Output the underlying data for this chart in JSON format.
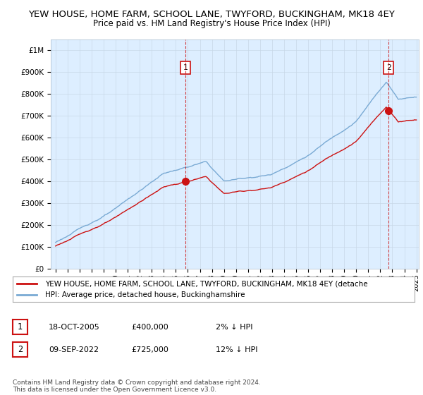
{
  "title": "YEW HOUSE, HOME FARM, SCHOOL LANE, TWYFORD, BUCKINGHAM, MK18 4EY",
  "subtitle": "Price paid vs. HM Land Registry's House Price Index (HPI)",
  "ylim": [
    0,
    1050000
  ],
  "yticks": [
    0,
    100000,
    200000,
    300000,
    400000,
    500000,
    600000,
    700000,
    800000,
    900000,
    1000000
  ],
  "ytick_labels": [
    "£0",
    "£100K",
    "£200K",
    "£300K",
    "£400K",
    "£500K",
    "£600K",
    "£700K",
    "£800K",
    "£900K",
    "£1M"
  ],
  "hpi_color": "#7aaad4",
  "price_color": "#cc1111",
  "chart_bg": "#ddeeff",
  "sale1_year": 2005.79,
  "sale1_price": 400000,
  "sale2_year": 2022.69,
  "sale2_price": 725000,
  "legend_line1": "YEW HOUSE, HOME FARM, SCHOOL LANE, TWYFORD, BUCKINGHAM, MK18 4EY (detache",
  "legend_line2": "HPI: Average price, detached house, Buckinghamshire",
  "fn1_date": "18-OCT-2005",
  "fn1_price": "£400,000",
  "fn1_hpi": "2% ↓ HPI",
  "fn2_date": "09-SEP-2022",
  "fn2_price": "£725,000",
  "fn2_hpi": "12% ↓ HPI",
  "copyright": "Contains HM Land Registry data © Crown copyright and database right 2024.\nThis data is licensed under the Open Government Licence v3.0.",
  "background_color": "#ffffff",
  "grid_color": "#c8d8e8"
}
